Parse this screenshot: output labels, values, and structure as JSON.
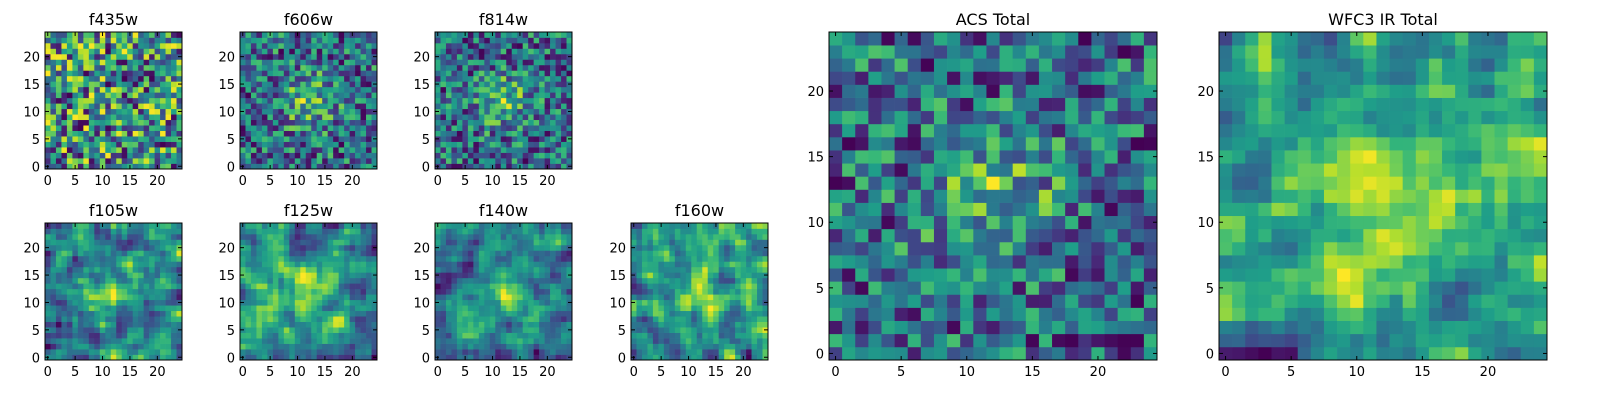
{
  "chart_data": [
    {
      "type": "heatmap",
      "title": "f435w",
      "xlim": [
        0,
        24
      ],
      "ylim": [
        0,
        24
      ],
      "xticks": [
        0,
        5,
        10,
        15,
        20
      ],
      "yticks": [
        0,
        5,
        10,
        15,
        20
      ],
      "grid": "off",
      "colormap": "viridis",
      "seed": 11,
      "pattern": "noise"
    },
    {
      "type": "heatmap",
      "title": "f606w",
      "xlim": [
        0,
        24
      ],
      "ylim": [
        0,
        24
      ],
      "xticks": [
        0,
        5,
        10,
        15,
        20
      ],
      "yticks": [
        0,
        5,
        10,
        15,
        20
      ],
      "grid": "off",
      "colormap": "viridis",
      "seed": 23,
      "pattern": "noise-center"
    },
    {
      "type": "heatmap",
      "title": "f814w",
      "xlim": [
        0,
        24
      ],
      "ylim": [
        0,
        24
      ],
      "xticks": [
        0,
        5,
        10,
        15,
        20
      ],
      "yticks": [
        0,
        5,
        10,
        15,
        20
      ],
      "grid": "off",
      "colormap": "viridis",
      "seed": 37,
      "pattern": "noise-center"
    },
    {
      "type": "heatmap",
      "title": "f105w",
      "xlim": [
        0,
        24
      ],
      "ylim": [
        0,
        24
      ],
      "xticks": [
        0,
        5,
        10,
        15,
        20
      ],
      "yticks": [
        0,
        5,
        10,
        15,
        20
      ],
      "grid": "off",
      "colormap": "viridis",
      "seed": 41,
      "pattern": "smooth-center"
    },
    {
      "type": "heatmap",
      "title": "f125w",
      "xlim": [
        0,
        24
      ],
      "ylim": [
        0,
        24
      ],
      "xticks": [
        0,
        5,
        10,
        15,
        20
      ],
      "yticks": [
        0,
        5,
        10,
        15,
        20
      ],
      "grid": "off",
      "colormap": "viridis",
      "seed": 53,
      "pattern": "smooth-center"
    },
    {
      "type": "heatmap",
      "title": "f140w",
      "xlim": [
        0,
        24
      ],
      "ylim": [
        0,
        24
      ],
      "xticks": [
        0,
        5,
        10,
        15,
        20
      ],
      "yticks": [
        0,
        5,
        10,
        15,
        20
      ],
      "grid": "off",
      "colormap": "viridis",
      "seed": 67,
      "pattern": "smooth-center"
    },
    {
      "type": "heatmap",
      "title": "f160w",
      "xlim": [
        0,
        24
      ],
      "ylim": [
        0,
        24
      ],
      "xticks": [
        0,
        5,
        10,
        15,
        20
      ],
      "yticks": [
        0,
        5,
        10,
        15,
        20
      ],
      "grid": "off",
      "colormap": "viridis",
      "seed": 79,
      "pattern": "smooth-center"
    },
    {
      "type": "heatmap",
      "title": "ACS Total",
      "xlim": [
        0,
        24
      ],
      "ylim": [
        0,
        24
      ],
      "xticks": [
        0,
        5,
        10,
        15,
        20
      ],
      "yticks": [
        0,
        5,
        10,
        15,
        20
      ],
      "grid": "off",
      "colormap": "viridis",
      "seed": 83,
      "pattern": "noise-center"
    },
    {
      "type": "heatmap",
      "title": "WFC3 IR Total",
      "xlim": [
        0,
        24
      ],
      "ylim": [
        0,
        24
      ],
      "xticks": [
        0,
        5,
        10,
        15,
        20
      ],
      "yticks": [
        0,
        5,
        10,
        15,
        20
      ],
      "grid": "off",
      "colormap": "viridis",
      "seed": 97,
      "pattern": "smooth-center"
    }
  ]
}
